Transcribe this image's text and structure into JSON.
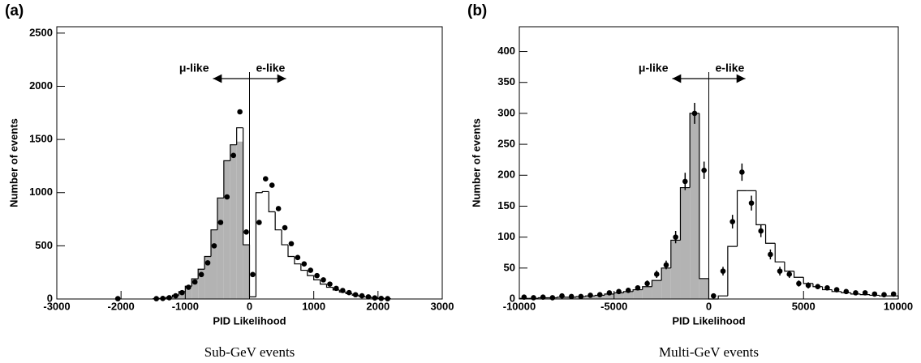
{
  "chart_data": [
    {
      "type": "histogram",
      "panel": "(a)",
      "xlabel": "PID Likelihood",
      "ylabel": "Number of events",
      "caption": "Sub-GeV events",
      "annotations": [
        "μ-like",
        "e-like"
      ],
      "xlim": [
        -3000,
        3000
      ],
      "ylim": [
        0,
        2560
      ],
      "xticks": [
        -3000,
        -2000,
        -1000,
        0,
        1000,
        2000,
        3000
      ],
      "yticks": [
        0,
        500,
        1000,
        1500,
        2000,
        2500
      ],
      "fill_color": "#b3b3b3",
      "line_color": "#000000",
      "point_color": "#000000",
      "bins": [
        -1500,
        -1400,
        -1300,
        -1200,
        -1100,
        -1000,
        -900,
        -800,
        -700,
        -600,
        -500,
        -400,
        -300,
        -200,
        -100,
        0,
        100,
        200,
        300,
        400,
        500,
        600,
        700,
        800,
        900,
        1000,
        1100,
        1200,
        1300,
        1400,
        1500,
        1600,
        1700,
        1800,
        1900,
        2000,
        2100,
        2200
      ],
      "counts": [
        3,
        6,
        15,
        35,
        70,
        120,
        190,
        280,
        400,
        650,
        950,
        1300,
        1450,
        1610,
        510,
        20,
        1000,
        1010,
        820,
        650,
        510,
        400,
        330,
        270,
        220,
        180,
        140,
        110,
        85,
        65,
        50,
        35,
        25,
        18,
        10,
        6,
        3
      ],
      "fill_counts": [
        3,
        6,
        15,
        35,
        70,
        120,
        190,
        280,
        400,
        650,
        950,
        1300,
        1450,
        1480,
        510,
        0,
        0,
        0,
        0,
        0,
        0,
        0,
        0,
        0,
        0,
        0,
        0,
        0,
        0,
        0,
        0,
        0,
        0,
        0,
        0,
        0,
        0
      ],
      "points": {
        "x": [
          -2050,
          -1450,
          -1350,
          -1250,
          -1150,
          -1050,
          -950,
          -850,
          -750,
          -650,
          -550,
          -450,
          -350,
          -250,
          -150,
          -50,
          50,
          150,
          250,
          350,
          450,
          550,
          650,
          750,
          850,
          950,
          1050,
          1150,
          1250,
          1350,
          1450,
          1550,
          1650,
          1750,
          1850,
          1950,
          2050,
          2150
        ],
        "y": [
          3,
          3,
          5,
          12,
          30,
          60,
          110,
          160,
          230,
          340,
          500,
          720,
          960,
          1350,
          1760,
          630,
          230,
          720,
          1130,
          1070,
          850,
          670,
          520,
          390,
          330,
          270,
          220,
          180,
          140,
          100,
          80,
          60,
          40,
          30,
          20,
          10,
          5,
          3
        ]
      }
    },
    {
      "type": "histogram",
      "panel": "(b)",
      "xlabel": "PID Likelihood",
      "ylabel": "Number of events",
      "caption": "Multi-GeV events",
      "annotations": [
        "μ-like",
        "e-like"
      ],
      "xlim": [
        -10000,
        10000
      ],
      "ylim": [
        0,
        440
      ],
      "xticks": [
        -10000,
        -5000,
        0,
        5000,
        10000
      ],
      "yticks": [
        0,
        50,
        100,
        150,
        200,
        250,
        300,
        350,
        400
      ],
      "fill_color": "#b3b3b3",
      "line_color": "#000000",
      "point_color": "#000000",
      "bins": [
        -10000,
        -9500,
        -9000,
        -8500,
        -8000,
        -7500,
        -7000,
        -6500,
        -6000,
        -5500,
        -5000,
        -4500,
        -4000,
        -3500,
        -3000,
        -2500,
        -2000,
        -1500,
        -1000,
        -500,
        0,
        500,
        1000,
        1500,
        2000,
        2500,
        3000,
        3500,
        4000,
        4500,
        5000,
        5500,
        6000,
        6500,
        7000,
        7500,
        8000,
        8500,
        9000,
        9500,
        10000
      ],
      "counts": [
        1,
        1,
        2,
        2,
        3,
        3,
        4,
        5,
        6,
        8,
        10,
        12,
        15,
        20,
        30,
        50,
        95,
        180,
        300,
        33,
        0,
        5,
        85,
        175,
        175,
        120,
        90,
        60,
        45,
        35,
        25,
        20,
        15,
        12,
        10,
        8,
        7,
        6,
        5,
        5
      ],
      "fill_counts": [
        1,
        1,
        2,
        2,
        3,
        3,
        4,
        5,
        6,
        8,
        10,
        12,
        15,
        20,
        30,
        50,
        95,
        180,
        300,
        33,
        0,
        0,
        0,
        0,
        0,
        0,
        0,
        0,
        0,
        0,
        0,
        0,
        0,
        0,
        0,
        0,
        0,
        0,
        0,
        0
      ],
      "points": {
        "x": [
          -9750,
          -9250,
          -8750,
          -8250,
          -7750,
          -7250,
          -6750,
          -6250,
          -5750,
          -5250,
          -4750,
          -4250,
          -3750,
          -3250,
          -2750,
          -2250,
          -1750,
          -1250,
          -750,
          -250,
          250,
          750,
          1250,
          1750,
          2250,
          2750,
          3250,
          3750,
          4250,
          4750,
          5250,
          5750,
          6250,
          6750,
          7250,
          7750,
          8250,
          8750,
          9250,
          9750
        ],
        "y": [
          3,
          2,
          3,
          2,
          5,
          4,
          4,
          6,
          7,
          10,
          12,
          14,
          18,
          25,
          40,
          55,
          100,
          190,
          300,
          208,
          5,
          45,
          125,
          205,
          155,
          110,
          72,
          45,
          40,
          25,
          22,
          20,
          18,
          15,
          12,
          10,
          10,
          8,
          7,
          8
        ],
        "errors": [
          2,
          1,
          2,
          1,
          2,
          2,
          2,
          2,
          3,
          3,
          3,
          4,
          4,
          5,
          6,
          7,
          10,
          14,
          17,
          14,
          2,
          7,
          11,
          14,
          12,
          10,
          8,
          7,
          6,
          5,
          5,
          4,
          4,
          4,
          3,
          3,
          3,
          3,
          3,
          3
        ]
      }
    }
  ]
}
